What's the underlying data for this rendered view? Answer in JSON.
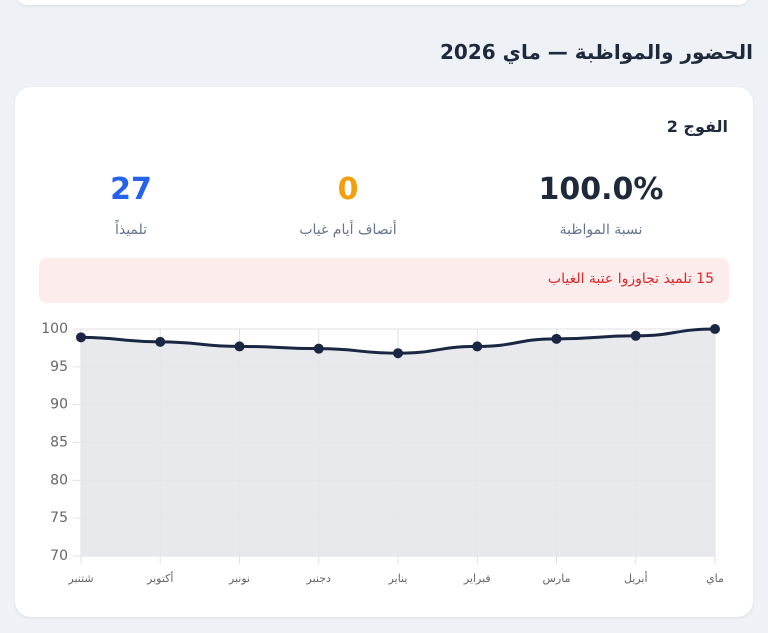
{
  "section_title": "الحضور والمواظبة — ماي 2026",
  "card": {
    "group_title": "الفوج 2",
    "stats": [
      {
        "value": "100.0%",
        "label": "نسبة المواظبة"
      },
      {
        "value": "0",
        "label": "أنصاف أيام غياب"
      },
      {
        "value": "27",
        "label": "تلميذاً"
      }
    ],
    "alert": "15 تلميذ تجاوزوا عتبة الغياب"
  },
  "chart_data": {
    "type": "line",
    "categories": [
      "شتنبر",
      "أكتوبر",
      "نونبر",
      "دجنبر",
      "يناير",
      "فبراير",
      "مارس",
      "أبريل",
      "ماي"
    ],
    "values": [
      98.9,
      98.3,
      97.7,
      97.4,
      96.8,
      97.7,
      98.7,
      99.1,
      100
    ],
    "color": "#1b2642",
    "fill": "#e6e7eb",
    "ylim": [
      70,
      100
    ],
    "yticks": [
      70,
      75,
      80,
      85,
      90,
      95,
      100
    ],
    "grid": true
  }
}
